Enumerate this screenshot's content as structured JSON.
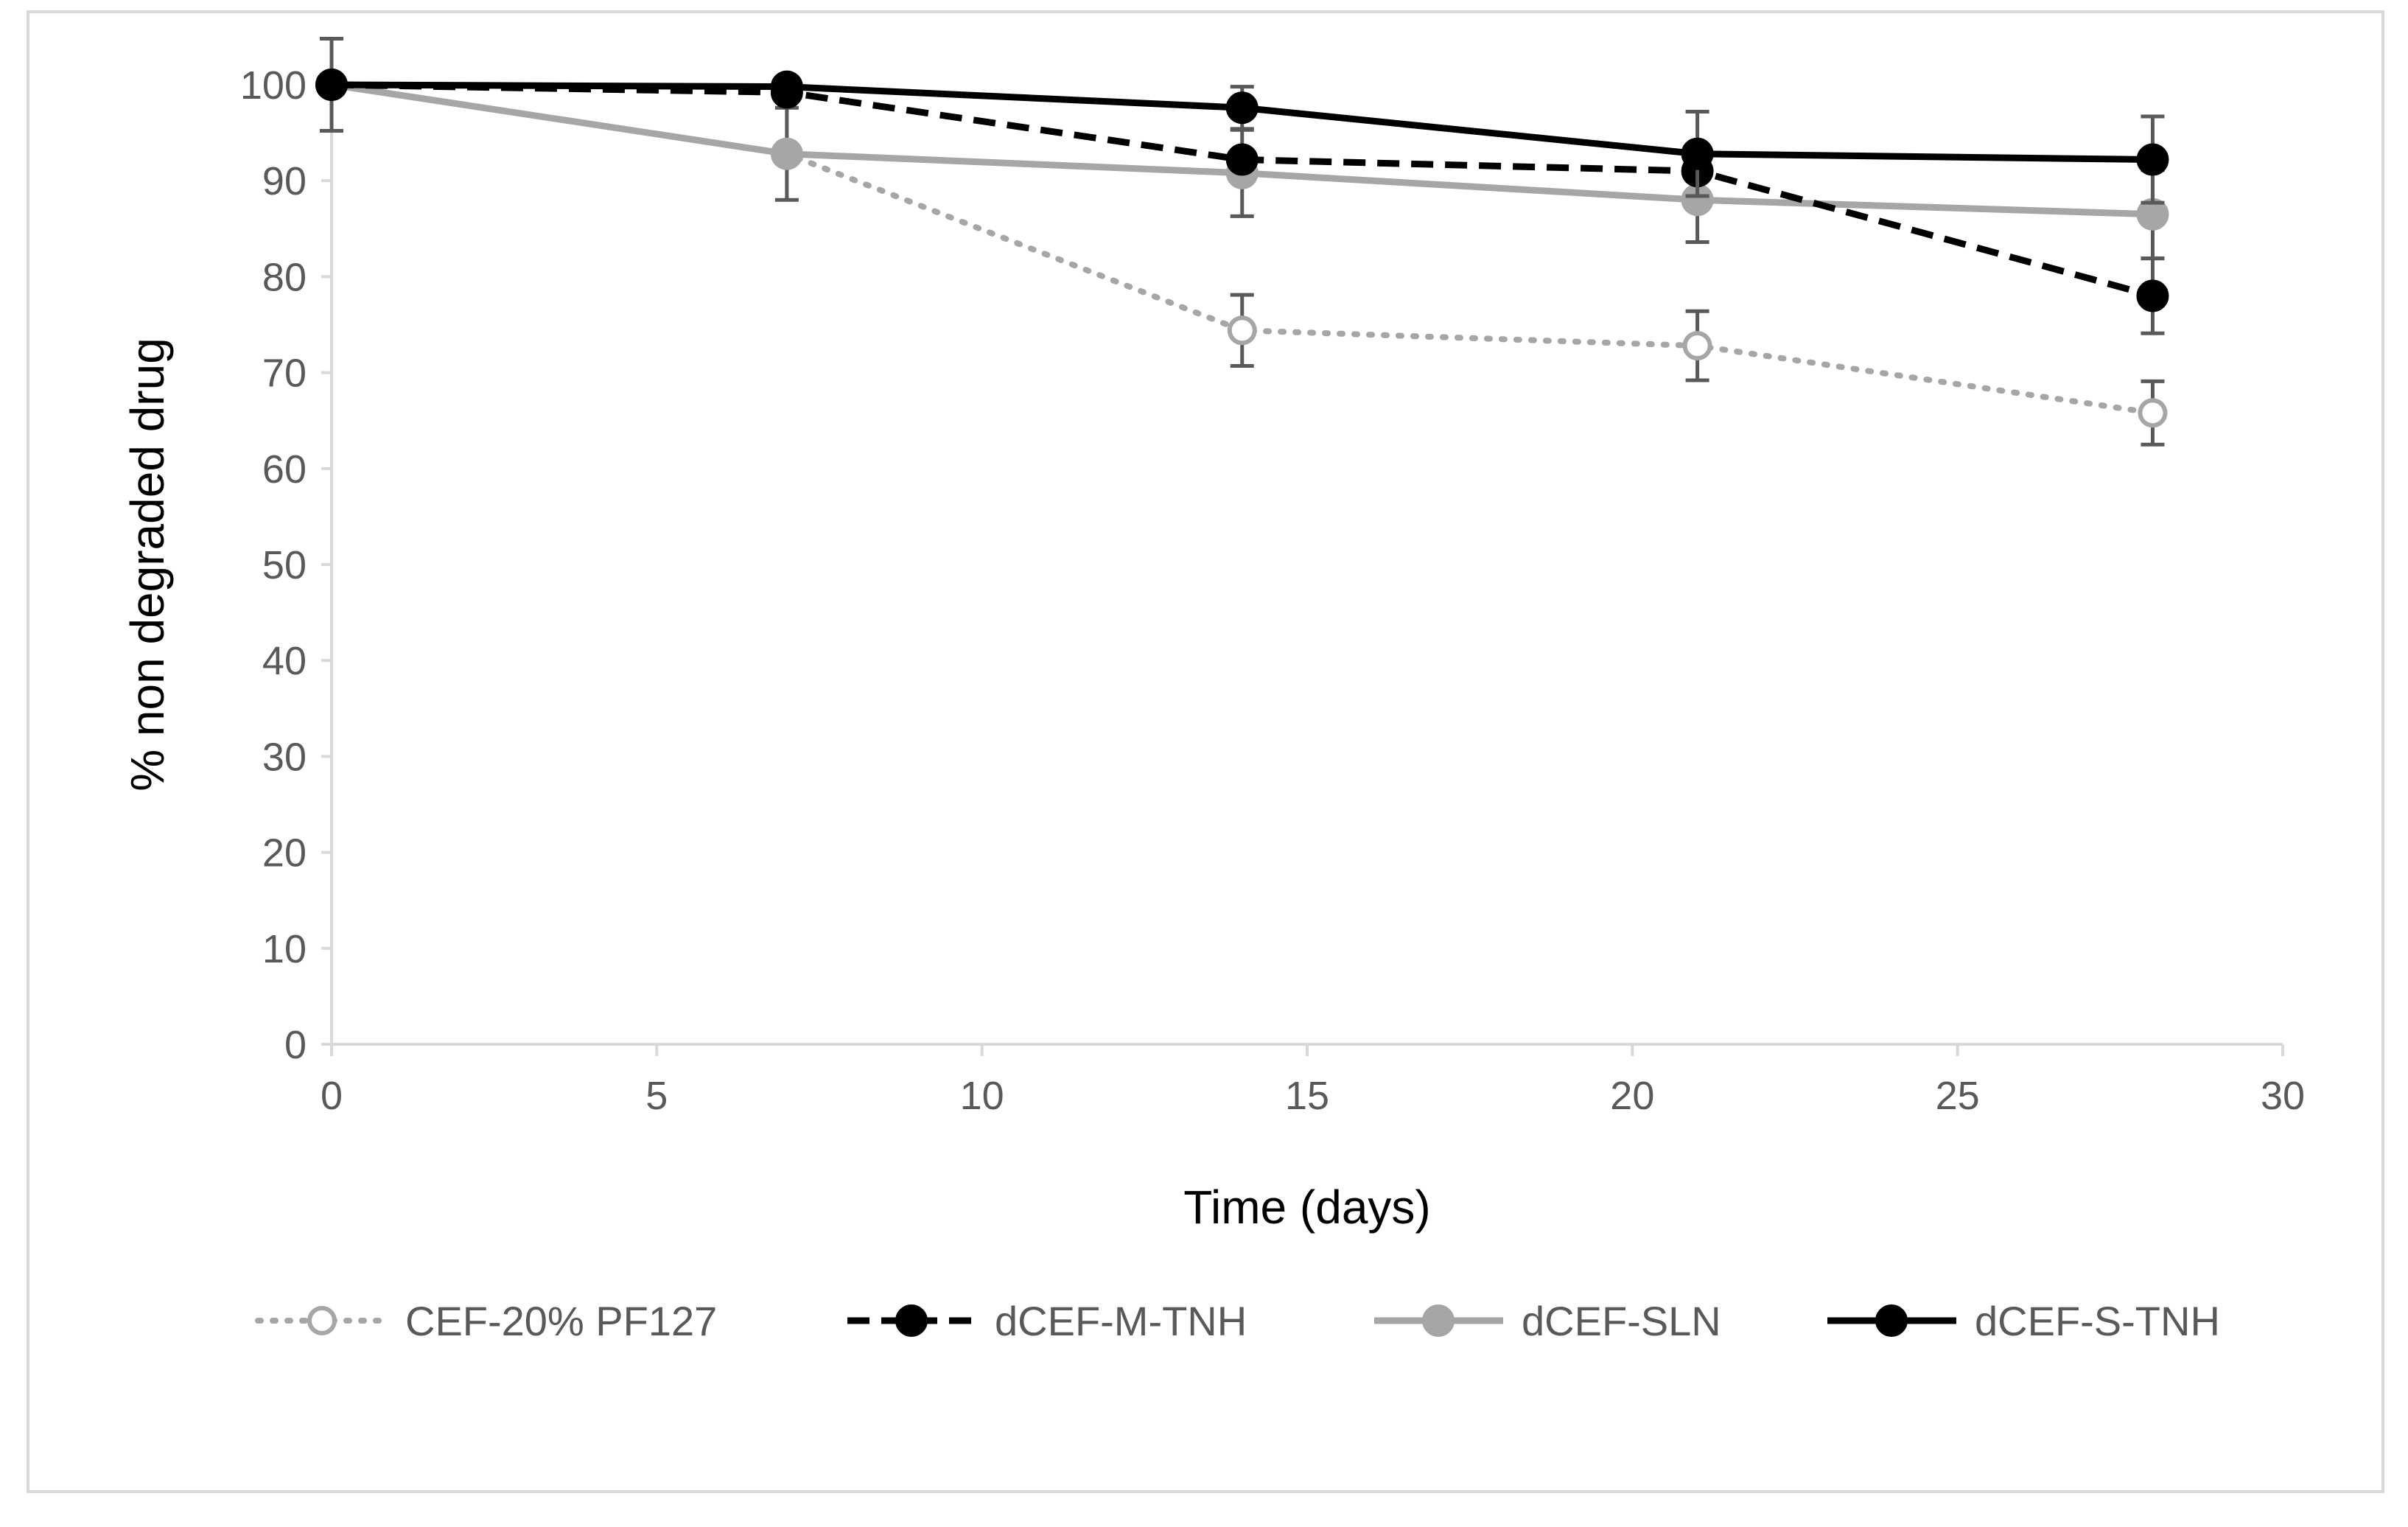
{
  "chart_data": {
    "type": "line",
    "title": "",
    "xlabel": "Time (days)",
    "ylabel": "% non degraded drug",
    "xlim": [
      0,
      30
    ],
    "ylim": [
      0,
      100
    ],
    "xticks": [
      0,
      5,
      10,
      15,
      20,
      25,
      30
    ],
    "yticks": [
      0,
      10,
      20,
      30,
      40,
      50,
      60,
      70,
      80,
      90,
      100
    ],
    "grid": false,
    "legend_position": "bottom",
    "x": [
      0,
      7,
      14,
      21,
      28
    ],
    "series": [
      {
        "name": "CEF-20% PF127",
        "values": [
          100,
          92.8,
          74.4,
          72.8,
          65.8
        ],
        "errors": [
          0,
          0,
          3.7,
          3.6,
          3.3
        ],
        "color": "#a6a6a6",
        "line_style": "dotted",
        "marker": "open-circle"
      },
      {
        "name": "dCEF-M-TNH",
        "values": [
          100,
          99.2,
          92.2,
          91.0,
          78.0
        ],
        "errors": [
          0,
          0,
          0,
          0,
          3.9
        ],
        "color": "#000000",
        "line_style": "dashed",
        "marker": "filled-circle"
      },
      {
        "name": "dCEF-SLN",
        "values": [
          100,
          92.8,
          90.8,
          88.0,
          86.5
        ],
        "errors": [
          4.8,
          4.8,
          4.5,
          4.4,
          4.6
        ],
        "color": "#a6a6a6",
        "line_style": "solid",
        "marker": "filled-circle"
      },
      {
        "name": "dCEF-S-TNH",
        "values": [
          100,
          99.8,
          97.6,
          92.8,
          92.2
        ],
        "errors": [
          0,
          0,
          2.2,
          4.4,
          4.5
        ],
        "color": "#000000",
        "line_style": "solid",
        "marker": "filled-circle"
      }
    ],
    "styles": {
      "axis_color": "#d9d9d9",
      "tick_label_color": "#595959",
      "error_bar_color": "#595959",
      "frame_color": "#d9d9d9"
    }
  }
}
